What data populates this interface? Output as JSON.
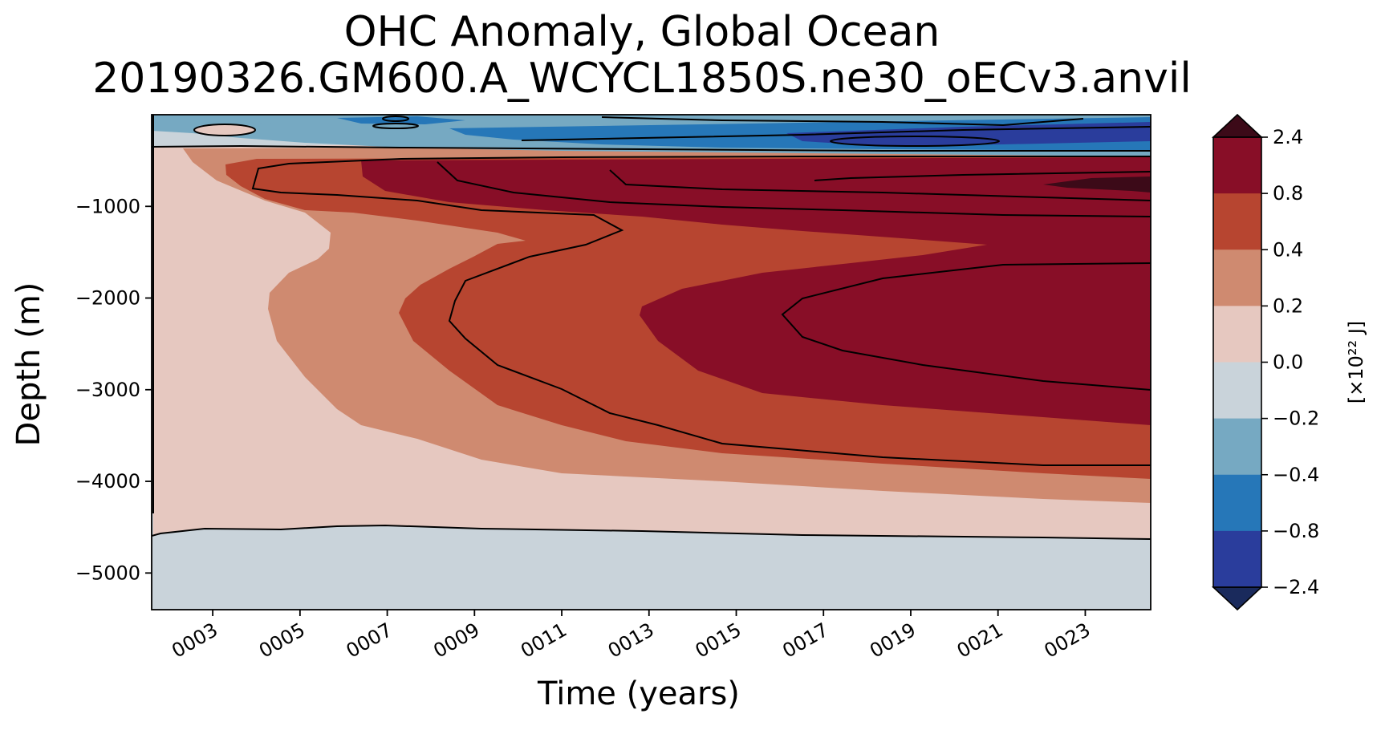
{
  "chart_data": {
    "type": "contourf",
    "title": "OHC Anomaly, Global Ocean",
    "subtitle": "20190326.GM600.A_WCYCL1850S.ne30_oECv3.anvil",
    "xlabel": "Time (years)",
    "ylabel": "Depth (m)",
    "xlim": [
      1.6,
      24.5
    ],
    "ylim": [
      -5400,
      0
    ],
    "x_ticks": [
      3,
      5,
      7,
      9,
      11,
      13,
      15,
      17,
      19,
      21,
      23
    ],
    "x_tick_labels": [
      "0003",
      "0005",
      "0007",
      "0009",
      "0011",
      "0013",
      "0015",
      "0017",
      "0019",
      "0021",
      "0023"
    ],
    "y_ticks": [
      -1000,
      -2000,
      -3000,
      -4000,
      -5000
    ],
    "y_tick_labels": [
      "−1000",
      "−2000",
      "−3000",
      "−4000",
      "−5000"
    ],
    "colorbar": {
      "label": "[×10²² J]",
      "levels": [
        -2.4,
        -0.8,
        -0.4,
        -0.2,
        0.0,
        0.2,
        0.4,
        0.8,
        2.4
      ],
      "level_labels": [
        "−2.4",
        "−0.8",
        "−0.4",
        "−0.2",
        "0.0",
        "0.2",
        "0.4",
        "0.8",
        "2.4"
      ],
      "colors": [
        "#2a3d9c",
        "#2677b8",
        "#76a9c2",
        "#c9d3da",
        "#e6c8c0",
        "#cf8a70",
        "#b74530",
        "#880e27"
      ],
      "under_color": "#1a2a5c",
      "over_color": "#3c0a18"
    },
    "grid": false,
    "legend": "colorbar-right"
  }
}
